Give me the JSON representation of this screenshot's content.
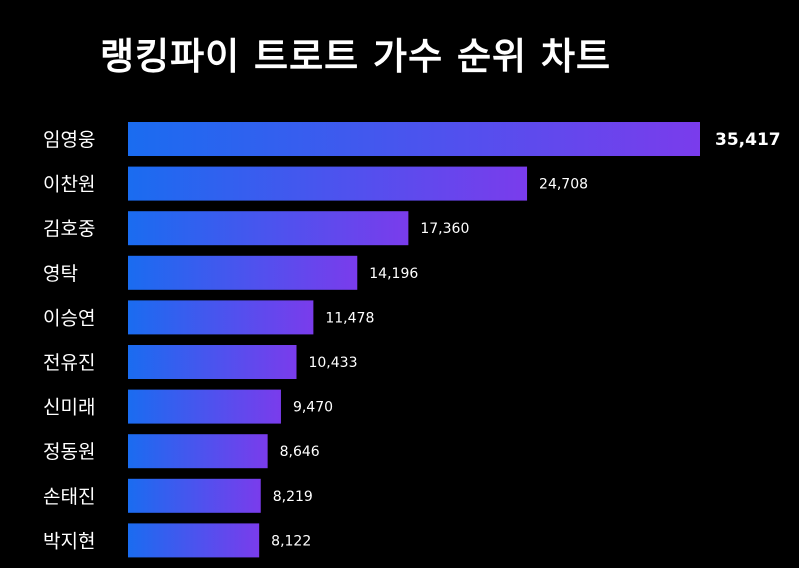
{
  "title": "랭킹파이 트로트 가수 순위 차트",
  "colors": {
    "background": "#000000",
    "bar_start": "#1a6cf0",
    "bar_end": "#7a3cec",
    "text": "#ffffff"
  },
  "chart_data": {
    "type": "bar",
    "orientation": "horizontal",
    "title": "랭킹파이 트로트 가수 순위 차트",
    "categories": [
      "임영웅",
      "이찬원",
      "김호중",
      "영탁",
      "이승연",
      "전유진",
      "신미래",
      "정동원",
      "손태진",
      "박지현"
    ],
    "values": [
      35417,
      24708,
      17360,
      14196,
      11478,
      10433,
      9470,
      8646,
      8219,
      8122
    ],
    "value_labels": [
      "35,417",
      "24,708",
      "17,360",
      "14,196",
      "11,478",
      "10,433",
      "9,470",
      "8,646",
      "8,219",
      "8,122"
    ],
    "xlabel": "",
    "ylabel": "",
    "grid": false,
    "legend": "none"
  }
}
